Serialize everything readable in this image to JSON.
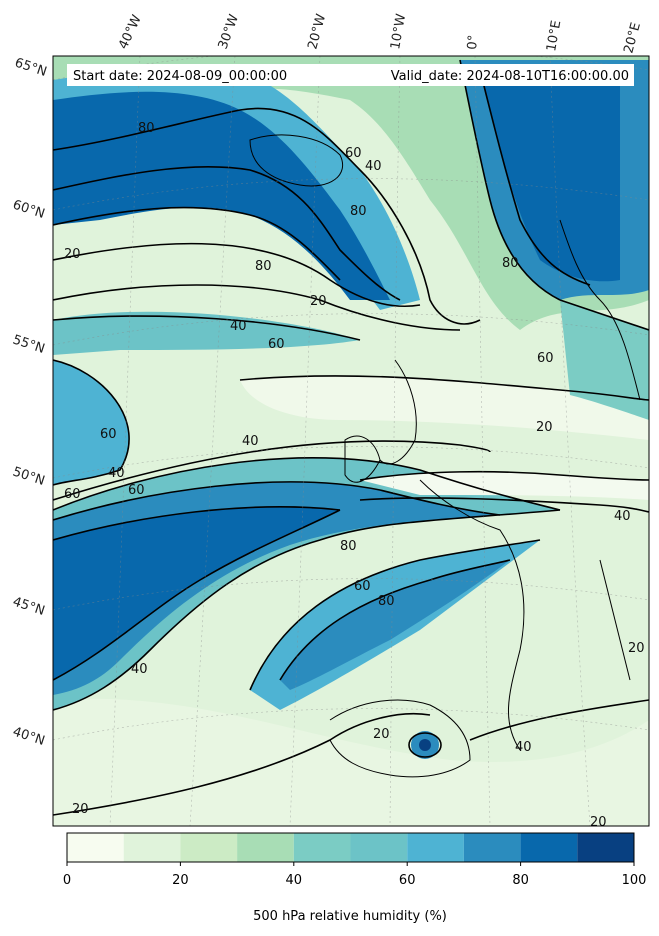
{
  "header": {
    "start_date": "Start date: 2024-08-09_00:00:00",
    "valid_date": "Valid_date: 2024-08-10T16:00:00.00"
  },
  "lon_labels": [
    "40°W",
    "30°W",
    "20°W",
    "10°W",
    "0°",
    "10°E",
    "20°E"
  ],
  "lat_labels": [
    "65°N",
    "60°N",
    "55°N",
    "50°N",
    "45°N",
    "40°N"
  ],
  "contour_labels": [
    "80",
    "60",
    "40",
    "20",
    "80",
    "60",
    "40",
    "20",
    "80",
    "60",
    "40",
    "20",
    "60",
    "80",
    "40",
    "20",
    "20",
    "40",
    "60",
    "80",
    "20",
    "40",
    "20",
    "80",
    "60",
    "40",
    "60"
  ],
  "colorbar": {
    "label": "500 hPa relative humidity (%)",
    "ticks": [
      "0",
      "20",
      "40",
      "60",
      "80",
      "100"
    ],
    "levels": [
      0,
      10,
      20,
      30,
      40,
      50,
      60,
      70,
      80,
      90,
      100
    ],
    "colors": [
      "#f7fcf0",
      "#e0f3db",
      "#ccebc5",
      "#a8ddb5",
      "#7bccc4",
      "#6cc3c7",
      "#4eb3d3",
      "#2b8cbe",
      "#0868ac",
      "#084081"
    ]
  }
}
